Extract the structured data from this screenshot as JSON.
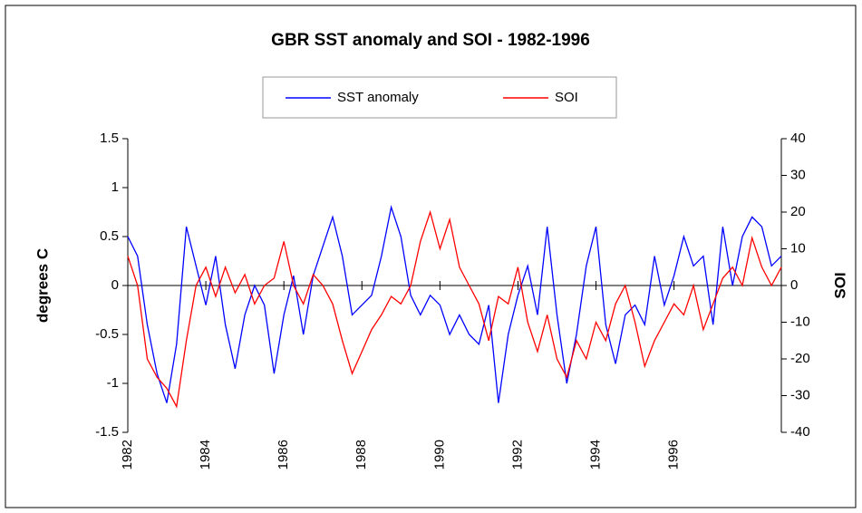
{
  "chart_data": {
    "type": "line",
    "title": "GBR SST anomaly and SOI - 1982-1996",
    "y_label": "degrees C",
    "y2_label": "SOI",
    "x": [
      1982,
      1982.25,
      1982.5,
      1982.75,
      1983,
      1983.25,
      1983.5,
      1983.75,
      1984,
      1984.25,
      1984.5,
      1984.75,
      1985,
      1985.25,
      1985.5,
      1985.75,
      1986,
      1986.25,
      1986.5,
      1986.75,
      1987,
      1987.25,
      1987.5,
      1987.75,
      1988,
      1988.25,
      1988.5,
      1988.75,
      1989,
      1989.25,
      1989.5,
      1989.75,
      1990,
      1990.25,
      1990.5,
      1990.75,
      1991,
      1991.25,
      1991.5,
      1991.75,
      1992,
      1992.25,
      1992.5,
      1992.75,
      1993,
      1993.25,
      1993.5,
      1993.75,
      1994,
      1994.25,
      1994.5,
      1994.75,
      1995,
      1995.25,
      1995.5,
      1995.75,
      1996,
      1996.25,
      1996.5,
      1996.75,
      1997,
      1997.25,
      1997.5,
      1997.75,
      1998,
      1998.25,
      1998.5,
      1998.75
    ],
    "series": [
      {
        "name": "SST anomaly",
        "color": "#0000ff",
        "values": [
          0.5,
          0.3,
          -0.4,
          -0.9,
          -1.2,
          -0.6,
          0.6,
          0.2,
          -0.2,
          0.3,
          -0.4,
          -0.85,
          -0.3,
          0,
          -0.2,
          -0.9,
          -0.3,
          0.1,
          -0.5,
          0.1,
          0.4,
          0.7,
          0.3,
          -0.3,
          -0.2,
          -0.1,
          0.3,
          0.8,
          0.5,
          -0.1,
          -0.3,
          -0.1,
          -0.2,
          -0.5,
          -0.3,
          -0.5,
          -0.6,
          -0.2,
          -1.2,
          -0.5,
          -0.1,
          0.2,
          -0.3,
          0.6,
          -0.3,
          -1.0,
          -0.5,
          0.2,
          0.6,
          -0.4,
          -0.8,
          -0.3,
          -0.2,
          -0.4,
          0.3,
          -0.2,
          0.1,
          0.5,
          0.2,
          0.3,
          -0.4,
          0.6,
          0,
          0.5,
          0.7,
          0.6,
          0.2,
          0.3
        ]
      },
      {
        "name": "SOI",
        "color": "#ff0000",
        "axis": "y2",
        "values": [
          8,
          0,
          -20,
          -25,
          -28,
          -33,
          -15,
          0,
          5,
          -3,
          5,
          -2,
          3,
          -5,
          0,
          2,
          12,
          0,
          -5,
          3,
          0,
          -5,
          -15,
          -24,
          -18,
          -12,
          -8,
          -3,
          -5,
          0,
          12,
          20,
          10,
          18,
          5,
          0,
          -5,
          -15,
          -3,
          -5,
          5,
          -10,
          -18,
          -8,
          -20,
          -25,
          -15,
          -20,
          -10,
          -15,
          -5,
          0,
          -10,
          -22,
          -15,
          -10,
          -5,
          -8,
          0,
          -12,
          -5,
          2,
          5,
          0,
          13,
          5,
          0,
          5
        ]
      }
    ],
    "xlim": [
      1982,
      1998.75
    ],
    "xticks": [
      1982,
      1984,
      1986,
      1988,
      1990,
      1992,
      1994,
      1996
    ],
    "ylim": [
      -1.5,
      1.5
    ],
    "yticks": [
      -1.5,
      -1,
      -0.5,
      0,
      0.5,
      1,
      1.5
    ],
    "y2lim": [
      -40,
      40
    ],
    "y2ticks": [
      -40,
      -30,
      -20,
      -10,
      0,
      10,
      20,
      30,
      40
    ],
    "legend": "top"
  }
}
